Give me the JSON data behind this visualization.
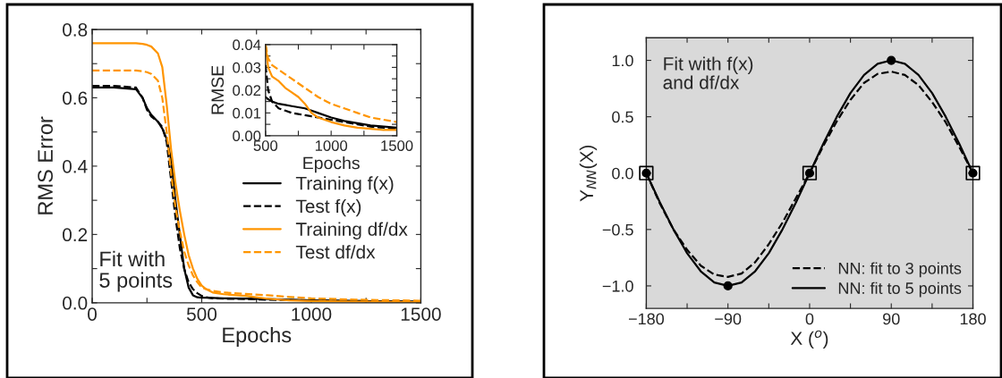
{
  "chart_data": [
    {
      "type": "line",
      "xlabel": "Epochs",
      "ylabel": "RMS Error",
      "xlim": [
        0,
        1500
      ],
      "ylim": [
        0,
        0.8
      ],
      "xticks": [
        0,
        {
          "value": 250,
          "label": null
        },
        500,
        {
          "value": 750,
          "label": null
        },
        1000,
        {
          "value": 1250,
          "label": null
        },
        1500
      ],
      "yticks": [
        {
          "value": 0,
          "label": "0.0"
        },
        {
          "value": 0.1,
          "label": null
        },
        0.2,
        {
          "value": 0.3,
          "label": null
        },
        0.4,
        {
          "value": 0.5,
          "label": null
        },
        0.6,
        {
          "value": 0.7,
          "label": null
        },
        0.8
      ],
      "x": [
        0,
        100,
        200,
        230,
        250,
        270,
        300,
        320,
        340,
        360,
        380,
        400,
        420,
        440,
        460,
        480,
        500,
        520,
        550,
        600,
        700,
        800,
        900,
        1000,
        1200,
        1500
      ],
      "legend": "bottom right",
      "annotations": [
        "Fit with\n5 points"
      ],
      "series": [
        {
          "name": "Training f(x)",
          "color": "#000000",
          "line_style": "solid",
          "values": [
            0.63,
            0.63,
            0.625,
            0.6,
            0.57,
            0.55,
            0.53,
            0.51,
            0.48,
            0.42,
            0.3,
            0.2,
            0.1,
            0.045,
            0.022,
            0.016,
            0.015,
            0.015,
            0.014,
            0.013,
            0.012,
            0.011,
            0.009,
            0.007,
            0.005,
            0.003
          ]
        },
        {
          "name": "Test f(x)",
          "color": "#000000",
          "line_style": "dashed",
          "values": [
            0.635,
            0.635,
            0.63,
            0.6,
            0.565,
            0.545,
            0.53,
            0.515,
            0.47,
            0.36,
            0.25,
            0.16,
            0.1,
            0.06,
            0.04,
            0.028,
            0.02,
            0.016,
            0.013,
            0.012,
            0.011,
            0.009,
            0.008,
            0.007,
            0.005,
            0.003
          ]
        },
        {
          "name": "Training df/dx",
          "color": "#ff9500",
          "line_style": "solid",
          "values": [
            0.76,
            0.76,
            0.76,
            0.758,
            0.755,
            0.75,
            0.73,
            0.69,
            0.58,
            0.45,
            0.35,
            0.27,
            0.2,
            0.14,
            0.1,
            0.07,
            0.05,
            0.04,
            0.03,
            0.025,
            0.02,
            0.012,
            0.007,
            0.005,
            0.003,
            0.002
          ]
        },
        {
          "name": "Test df/dx",
          "color": "#ff9500",
          "line_style": "dashed",
          "values": [
            0.68,
            0.68,
            0.68,
            0.678,
            0.675,
            0.67,
            0.65,
            0.6,
            0.5,
            0.38,
            0.28,
            0.21,
            0.15,
            0.11,
            0.08,
            0.06,
            0.045,
            0.04,
            0.035,
            0.03,
            0.026,
            0.022,
            0.017,
            0.013,
            0.009,
            0.006
          ]
        }
      ]
    },
    {
      "type": "line",
      "xlabel": "Epochs",
      "ylabel": "RMSE",
      "xlim": [
        500,
        1500
      ],
      "ylim": [
        0,
        0.04
      ],
      "xticks": [
        500,
        {
          "value": 750,
          "label": null
        },
        1000,
        {
          "value": 1250,
          "label": null
        },
        1500
      ],
      "yticks": [
        {
          "value": 0,
          "label": "0.00"
        },
        {
          "value": 0.005,
          "label": null
        },
        {
          "value": 0.01,
          "label": "0.01"
        },
        {
          "value": 0.015,
          "label": null
        },
        {
          "value": 0.02,
          "label": "0.02"
        },
        {
          "value": 0.025,
          "label": null
        },
        {
          "value": 0.03,
          "label": "0.03"
        },
        {
          "value": 0.035,
          "label": null
        },
        {
          "value": 0.04,
          "label": "0.04"
        }
      ],
      "x": [
        500,
        520,
        550,
        600,
        650,
        700,
        750,
        800,
        850,
        900,
        1000,
        1100,
        1200,
        1300,
        1400,
        1500
      ],
      "series": [
        {
          "color": "#000000",
          "line_style": "solid",
          "values": [
            0.017,
            0.016,
            0.015,
            0.014,
            0.0135,
            0.013,
            0.0125,
            0.012,
            0.011,
            0.01,
            0.008,
            0.0065,
            0.0055,
            0.0045,
            0.004,
            0.0035
          ]
        },
        {
          "color": "#000000",
          "line_style": "dashed",
          "values": [
            0.031,
            0.02,
            0.015,
            0.012,
            0.011,
            0.01,
            0.0095,
            0.009,
            0.0085,
            0.008,
            0.007,
            0.006,
            0.005,
            0.004,
            0.0035,
            0.003
          ]
        },
        {
          "color": "#ff9500",
          "line_style": "solid",
          "values": [
            0.04,
            0.03,
            0.026,
            0.024,
            0.021,
            0.019,
            0.017,
            0.014,
            0.01,
            0.008,
            0.006,
            0.0045,
            0.0035,
            0.003,
            0.0025,
            0.0025
          ]
        },
        {
          "color": "#ff9500",
          "line_style": "dashed",
          "values": [
            0.04,
            0.034,
            0.031,
            0.029,
            0.027,
            0.025,
            0.023,
            0.021,
            0.019,
            0.017,
            0.014,
            0.012,
            0.01,
            0.008,
            0.007,
            0.006
          ]
        }
      ]
    },
    {
      "type": "line",
      "xlabel": "X ($^{o}$)",
      "ylabel": "Y$_{NN}$(X)",
      "xlim": [
        -180,
        180
      ],
      "ylim": [
        -1.2,
        1.2
      ],
      "xticks": [
        {
          "value": -180,
          "label": "−180"
        },
        {
          "value": -135,
          "label": null
        },
        {
          "value": -90,
          "label": "−90"
        },
        {
          "value": -45,
          "label": null
        },
        0,
        {
          "value": 45,
          "label": null
        },
        90,
        {
          "value": 135,
          "label": null
        },
        180
      ],
      "yticks": [
        {
          "value": -1,
          "label": "−1.0"
        },
        {
          "value": -0.5,
          "label": "−0.5"
        },
        {
          "value": 0,
          "label": "0.0"
        },
        {
          "value": 0.5,
          "label": "0.5"
        },
        {
          "value": 1,
          "label": "1.0"
        }
      ],
      "x": [
        -180,
        -165,
        -150,
        -135,
        -120,
        -105,
        -90,
        -75,
        -60,
        -45,
        -30,
        -15,
        0,
        15,
        30,
        45,
        60,
        75,
        90,
        105,
        120,
        135,
        150,
        165,
        180
      ],
      "legend": "bottom right",
      "annotations": [
        "Fit with f(x)\nand df/dx"
      ],
      "series": [
        {
          "name": "NN: fit to 3 points",
          "color": "#000000",
          "line_style": "dashed",
          "values": [
            0,
            -0.27,
            -0.5,
            -0.68,
            -0.82,
            -0.9,
            -0.92,
            -0.89,
            -0.79,
            -0.63,
            -0.44,
            -0.22,
            0,
            0.24,
            0.46,
            0.65,
            0.8,
            0.88,
            0.9,
            0.87,
            0.78,
            0.63,
            0.45,
            0.23,
            0
          ]
        },
        {
          "name": "NN: fit to 5 points",
          "color": "#000000",
          "line_style": "solid",
          "values": [
            0,
            -0.26,
            -0.5,
            -0.71,
            -0.87,
            -0.97,
            -1.0,
            -0.97,
            -0.87,
            -0.71,
            -0.5,
            -0.26,
            0,
            0.26,
            0.5,
            0.71,
            0.87,
            0.97,
            1.0,
            0.97,
            0.87,
            0.71,
            0.5,
            0.26,
            0
          ]
        },
        {
          "type": "scatter",
          "marker": "square",
          "color": "#000000",
          "x": [
            -180,
            0,
            180
          ],
          "values": [
            0,
            0,
            0
          ]
        },
        {
          "type": "scatter",
          "marker": "circle",
          "color": "#000000",
          "x": [
            -180,
            -90,
            0,
            90,
            180
          ],
          "values": [
            0,
            -1,
            0,
            1,
            0
          ]
        }
      ]
    }
  ]
}
